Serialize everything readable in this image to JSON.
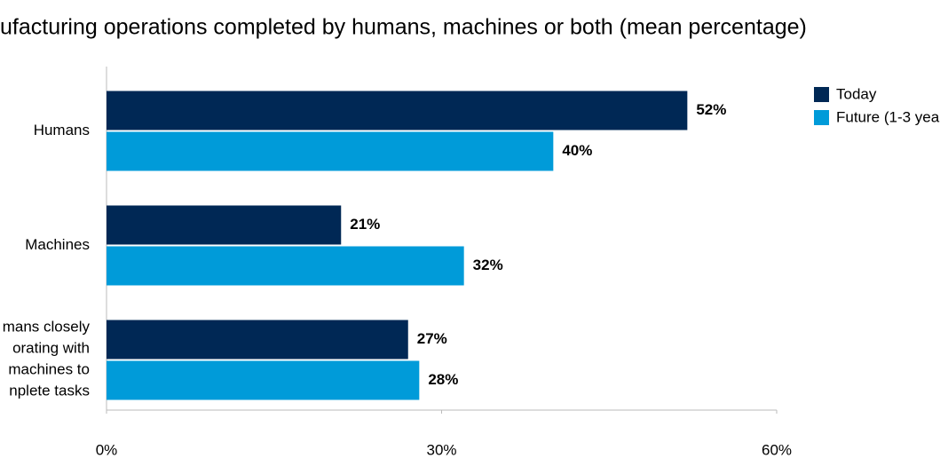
{
  "chart_data": {
    "type": "hbar",
    "title": "ufacturing operations completed by humans, machines or both (mean percentage)",
    "categories": [
      "Humans",
      "Machines",
      "mans closely\norating with\nmachines to\nnplete tasks"
    ],
    "series": [
      {
        "name": "Today",
        "color": "#002855",
        "values": [
          52,
          21,
          27
        ],
        "value_labels": [
          "52%",
          "21%",
          "27%"
        ]
      },
      {
        "name": "Future (1-3 yea",
        "color": "#009bd9",
        "values": [
          40,
          32,
          28
        ],
        "value_labels": [
          "40%",
          "32%",
          "28%"
        ]
      }
    ],
    "xlim": [
      0,
      60
    ],
    "xticks": [
      {
        "value": 0,
        "label": "0%"
      },
      {
        "value": 30,
        "label": "30%"
      },
      {
        "value": 60,
        "label": "60%"
      }
    ],
    "legend": "right"
  }
}
